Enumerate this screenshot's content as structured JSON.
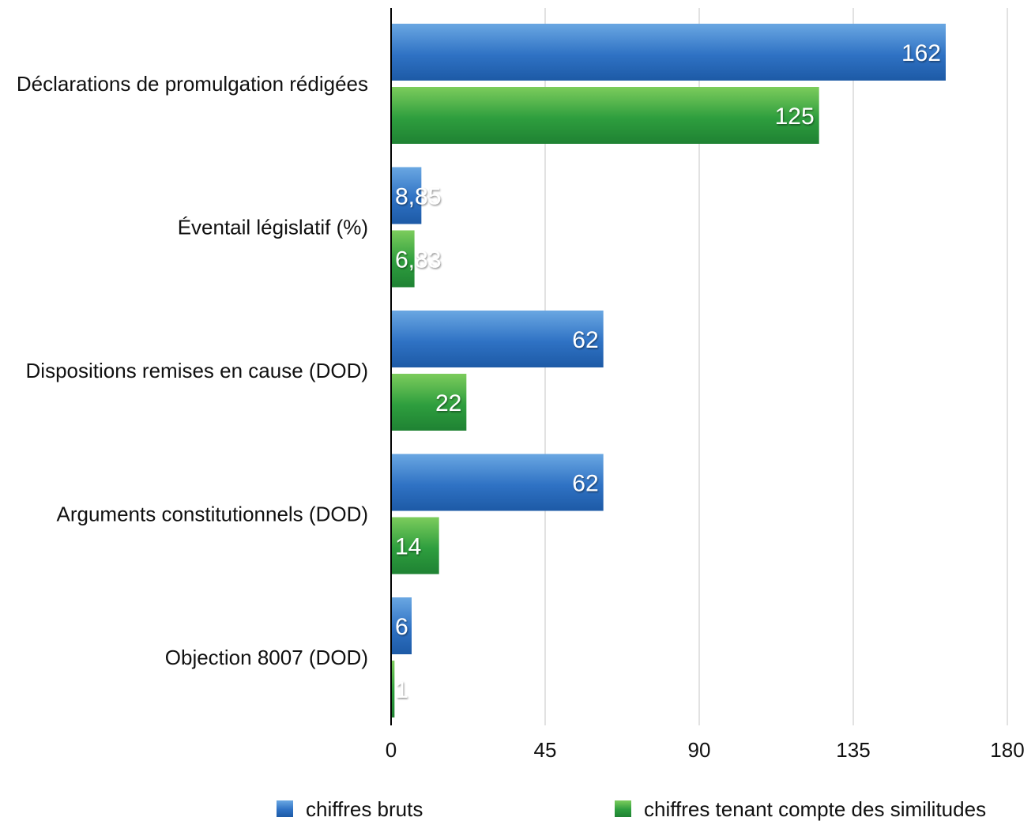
{
  "chart_data": {
    "type": "bar",
    "orientation": "horizontal",
    "title": "",
    "xlabel": "",
    "ylabel": "",
    "xlim": [
      0,
      180
    ],
    "x_ticks": [
      "0",
      "45",
      "90",
      "135",
      "180"
    ],
    "grid": true,
    "legend_position": "bottom",
    "categories": [
      "Déclarations de promulgation rédigées",
      "Éventail législatif (%)",
      "Dispositions remises en cause (DOD)",
      "Arguments constitutionnels (DOD)",
      "Objection 8007 (DOD)"
    ],
    "series": [
      {
        "name": "chiffres bruts",
        "color": "#2f72c4",
        "values": [
          162,
          8.85,
          62,
          62,
          6
        ],
        "value_labels": [
          "162",
          "8,85",
          "62",
          "62",
          "6"
        ]
      },
      {
        "name": "chiffres tenant compte des similitudes",
        "color": "#2e9e3e",
        "values": [
          125,
          6.83,
          22,
          14,
          1
        ],
        "value_labels": [
          "125",
          "6,83",
          "22",
          "14",
          "1"
        ]
      }
    ]
  }
}
